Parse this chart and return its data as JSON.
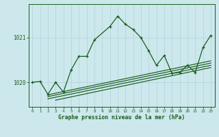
{
  "bg_color": "#cce8ed",
  "grid_color": "#b8d8de",
  "line_color": "#1a5c1a",
  "xlabel": "Graphe pression niveau de la mer (hPa)",
  "xlabel_color": "#1a5c1a",
  "ylabel_ticks": [
    1020,
    1021
  ],
  "xlim": [
    -0.5,
    23.5
  ],
  "ylim": [
    1019.45,
    1021.75
  ],
  "x_ticks": [
    0,
    1,
    2,
    3,
    4,
    5,
    6,
    7,
    8,
    9,
    10,
    11,
    12,
    13,
    14,
    15,
    16,
    17,
    18,
    19,
    20,
    21,
    22,
    23
  ],
  "main_x": [
    0,
    1,
    2,
    3,
    4,
    5,
    6,
    7,
    8,
    10,
    11,
    12,
    13,
    14,
    15,
    16,
    17,
    18,
    19,
    20,
    21,
    22,
    23
  ],
  "main_y": [
    1020.0,
    1020.02,
    1019.73,
    1020.0,
    1019.78,
    1020.28,
    1020.58,
    1020.58,
    1020.95,
    1021.25,
    1021.48,
    1021.3,
    1021.18,
    1021.0,
    1020.7,
    1020.38,
    1020.6,
    1020.2,
    1020.22,
    1020.38,
    1020.22,
    1020.78,
    1021.05
  ],
  "flat_lines": [
    {
      "x": [
        2,
        23
      ],
      "y": [
        1019.72,
        1020.48
      ]
    },
    {
      "x": [
        2,
        23
      ],
      "y": [
        1019.68,
        1020.43
      ]
    },
    {
      "x": [
        2,
        23
      ],
      "y": [
        1019.63,
        1020.38
      ]
    },
    {
      "x": [
        3,
        23
      ],
      "y": [
        1019.6,
        1020.33
      ]
    }
  ],
  "ylabel_tick_labels": [
    "1020",
    "1021"
  ]
}
